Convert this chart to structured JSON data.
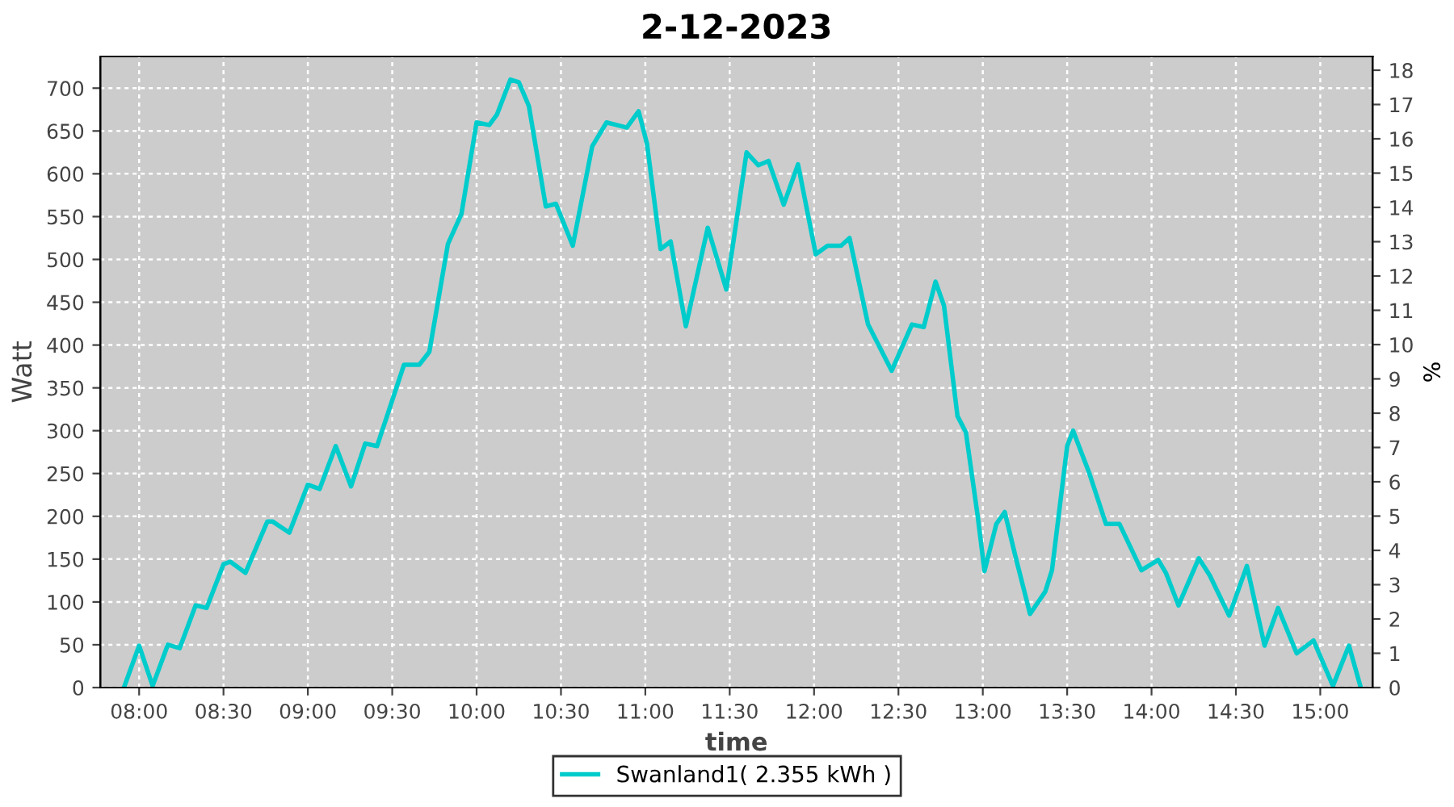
{
  "chart_data": {
    "type": "line",
    "title": "2-12-2023",
    "xlabel": "time",
    "ylabel": "Watt",
    "y2label": "%",
    "grid": true,
    "legend": "bottom",
    "line_style": "solid",
    "marker": "none",
    "xlim": [
      7.77,
      15.31
    ],
    "xticks": [
      {
        "value": 8,
        "label": "08:00"
      },
      {
        "value": 8.5,
        "label": "08:30"
      },
      {
        "value": 9,
        "label": "09:00"
      },
      {
        "value": 9.5,
        "label": "09:30"
      },
      {
        "value": 10,
        "label": "10:00"
      },
      {
        "value": 10.5,
        "label": "10:30"
      },
      {
        "value": 11,
        "label": "11:00"
      },
      {
        "value": 11.5,
        "label": "11:30"
      },
      {
        "value": 12,
        "label": "12:00"
      },
      {
        "value": 12.5,
        "label": "12:30"
      },
      {
        "value": 13,
        "label": "13:00"
      },
      {
        "value": 13.5,
        "label": "13:30"
      },
      {
        "value": 14,
        "label": "14:00"
      },
      {
        "value": 14.5,
        "label": "14:30"
      },
      {
        "value": 15,
        "label": "15:00"
      }
    ],
    "ylim": [
      0,
      737
    ],
    "yticks": [
      0,
      50,
      100,
      150,
      200,
      250,
      300,
      350,
      400,
      450,
      500,
      550,
      600,
      650,
      700
    ],
    "y2lim": [
      0,
      18.4
    ],
    "y2ticks": [
      0,
      1,
      2,
      3,
      4,
      5,
      6,
      7,
      8,
      9,
      10,
      11,
      12,
      13,
      14,
      15,
      16,
      17,
      18
    ],
    "series": [
      {
        "name": "Swanland1( 2.355 kWh )",
        "color": "#00cccc",
        "x": [
          7.91,
          8.0,
          8.08,
          8.17,
          8.24,
          8.335,
          8.4,
          8.5,
          8.54,
          8.63,
          8.76,
          8.79,
          8.89,
          9.0,
          9.07,
          9.165,
          9.256,
          9.34,
          9.41,
          9.57,
          9.66,
          9.72,
          9.83,
          9.91,
          10.0,
          10.075,
          10.12,
          10.2,
          10.25,
          10.31,
          10.41,
          10.47,
          10.57,
          10.685,
          10.77,
          10.83,
          10.89,
          10.96,
          11.01,
          11.09,
          11.15,
          11.24,
          11.37,
          11.48,
          11.6,
          11.67,
          11.73,
          11.82,
          11.905,
          12.01,
          12.08,
          12.16,
          12.21,
          12.32,
          12.46,
          12.58,
          12.65,
          12.72,
          12.77,
          12.85,
          12.9,
          12.97,
          13.01,
          13.08,
          13.13,
          13.19,
          13.28,
          13.37,
          13.41,
          13.5,
          13.535,
          13.63,
          13.73,
          13.81,
          13.94,
          14.04,
          14.085,
          14.16,
          14.28,
          14.345,
          14.46,
          14.565,
          14.67,
          14.75,
          14.86,
          14.96,
          15.075,
          15.17,
          15.24
        ],
        "values": [
          0,
          49,
          2,
          50,
          46,
          96,
          93,
          144,
          147,
          134,
          194,
          194,
          181,
          237,
          232,
          282,
          235,
          285,
          282,
          377,
          377,
          392,
          518,
          553,
          660,
          657,
          669,
          710,
          707,
          679,
          562,
          565,
          516,
          632,
          660,
          657,
          654,
          673,
          635,
          512,
          521,
          422,
          537,
          465,
          625,
          610,
          615,
          564,
          611,
          506,
          516,
          516,
          525,
          424,
          370,
          424,
          421,
          474,
          446,
          317,
          298,
          200,
          136,
          191,
          205,
          156,
          86,
          112,
          137,
          282,
          300,
          251,
          191,
          191,
          137,
          149,
          134,
          96,
          151,
          131,
          84,
          142,
          49,
          93,
          40,
          55,
          2,
          49,
          0
        ]
      }
    ]
  }
}
